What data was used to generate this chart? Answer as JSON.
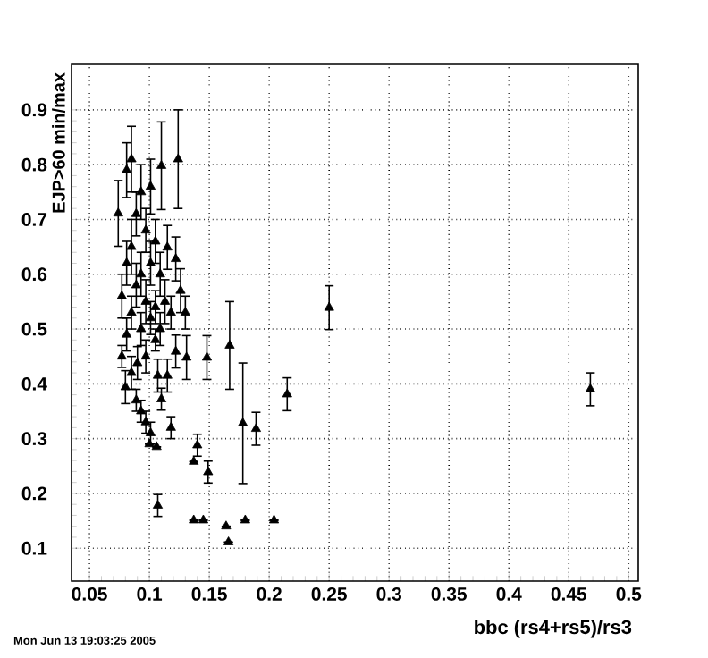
{
  "chart_data": {
    "type": "scatter",
    "xlabel": "bbc (rs4+rs5)/rs3",
    "ylabel": "EJP>60 min/max",
    "annotations": [
      "Mon Jun 13 19:03:25 2005"
    ],
    "x": [
      0.468,
      0.25,
      0.215,
      0.189,
      0.204,
      0.167,
      0.148,
      0.131,
      0.178,
      0.14,
      0.137,
      0.149,
      0.107,
      0.137,
      0.145,
      0.164,
      0.18,
      0.166,
      0.118,
      0.11,
      0.106,
      0.1,
      0.08,
      0.122,
      0.115,
      0.107,
      0.09,
      0.124,
      0.11,
      0.085,
      0.074,
      0.115,
      0.122,
      0.077,
      0.077,
      0.081,
      0.081,
      0.081,
      0.085,
      0.085,
      0.085,
      0.089,
      0.089,
      0.089,
      0.093,
      0.093,
      0.093,
      0.093,
      0.097,
      0.097,
      0.097,
      0.097,
      0.101,
      0.101,
      0.101,
      0.101,
      0.105,
      0.105,
      0.105,
      0.109,
      0.109,
      0.113,
      0.118,
      0.126,
      0.13
    ],
    "values": [
      0.39,
      0.539,
      0.381,
      0.318,
      0.151,
      0.47,
      0.448,
      0.448,
      0.328,
      0.288,
      0.258,
      0.239,
      0.178,
      0.151,
      0.151,
      0.14,
      0.151,
      0.111,
      0.32,
      0.372,
      0.285,
      0.29,
      0.394,
      0.459,
      0.415,
      0.415,
      0.438,
      0.81,
      0.798,
      0.81,
      0.711,
      0.649,
      0.628,
      0.56,
      0.45,
      0.79,
      0.62,
      0.49,
      0.65,
      0.53,
      0.42,
      0.71,
      0.58,
      0.37,
      0.75,
      0.6,
      0.5,
      0.35,
      0.68,
      0.55,
      0.45,
      0.33,
      0.76,
      0.62,
      0.52,
      0.31,
      0.66,
      0.54,
      0.48,
      0.6,
      0.5,
      0.55,
      0.53,
      0.57,
      0.53
    ],
    "errors": [
      0.03,
      0.04,
      0.03,
      0.03,
      null,
      0.08,
      0.04,
      0.04,
      0.11,
      0.02,
      null,
      0.02,
      0.02,
      null,
      null,
      null,
      null,
      null,
      0.02,
      0.02,
      null,
      null,
      0.03,
      0.03,
      0.03,
      0.03,
      0.03,
      0.09,
      0.08,
      0.06,
      0.06,
      0.04,
      0.04,
      0.04,
      0.02,
      0.05,
      0.04,
      0.03,
      0.05,
      0.03,
      0.03,
      0.04,
      0.04,
      0.02,
      0.05,
      0.04,
      0.03,
      0.02,
      0.04,
      0.04,
      0.03,
      0.02,
      0.05,
      0.04,
      0.03,
      0.02,
      0.04,
      0.03,
      0.02,
      0.04,
      0.03,
      0.04,
      0.03,
      0.04,
      0.03
    ],
    "color": "#000000",
    "marker": "triangle",
    "grid": true,
    "xlim": [
      0.035,
      0.508
    ],
    "ylim": [
      0.04,
      0.983
    ],
    "xticks": [
      0.05,
      0.1,
      0.15,
      0.2,
      0.25,
      0.3,
      0.35,
      0.4,
      0.45,
      0.5
    ],
    "yticks": [
      0.1,
      0.2,
      0.3,
      0.4,
      0.5,
      0.6,
      0.7,
      0.8,
      0.9
    ]
  }
}
